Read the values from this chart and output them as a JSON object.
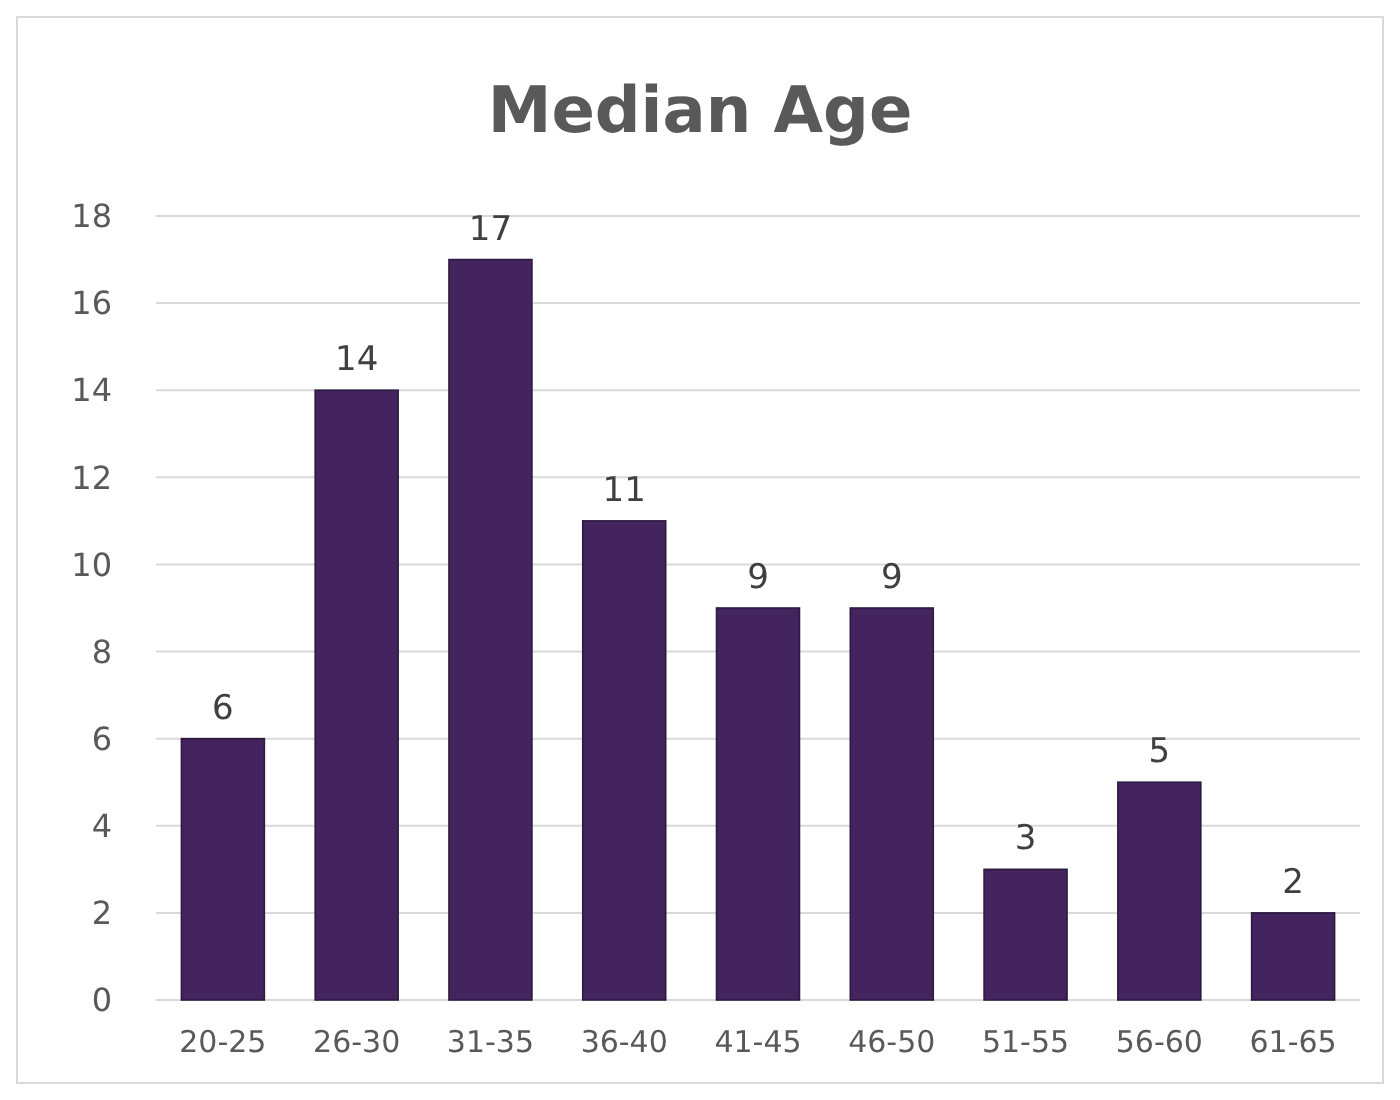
{
  "chart_data": {
    "type": "bar",
    "title": "Median Age",
    "categories": [
      "20-25",
      "26-30",
      "31-35",
      "36-40",
      "41-45",
      "46-50",
      "51-55",
      "56-60",
      "61-65"
    ],
    "values": [
      6,
      14,
      17,
      11,
      9,
      9,
      3,
      5,
      2
    ],
    "color": "#44245e",
    "ylim": [
      0,
      18
    ],
    "yticks": [
      0,
      2,
      4,
      6,
      8,
      10,
      12,
      14,
      16,
      18
    ],
    "grid": "y",
    "data_labels": true
  }
}
